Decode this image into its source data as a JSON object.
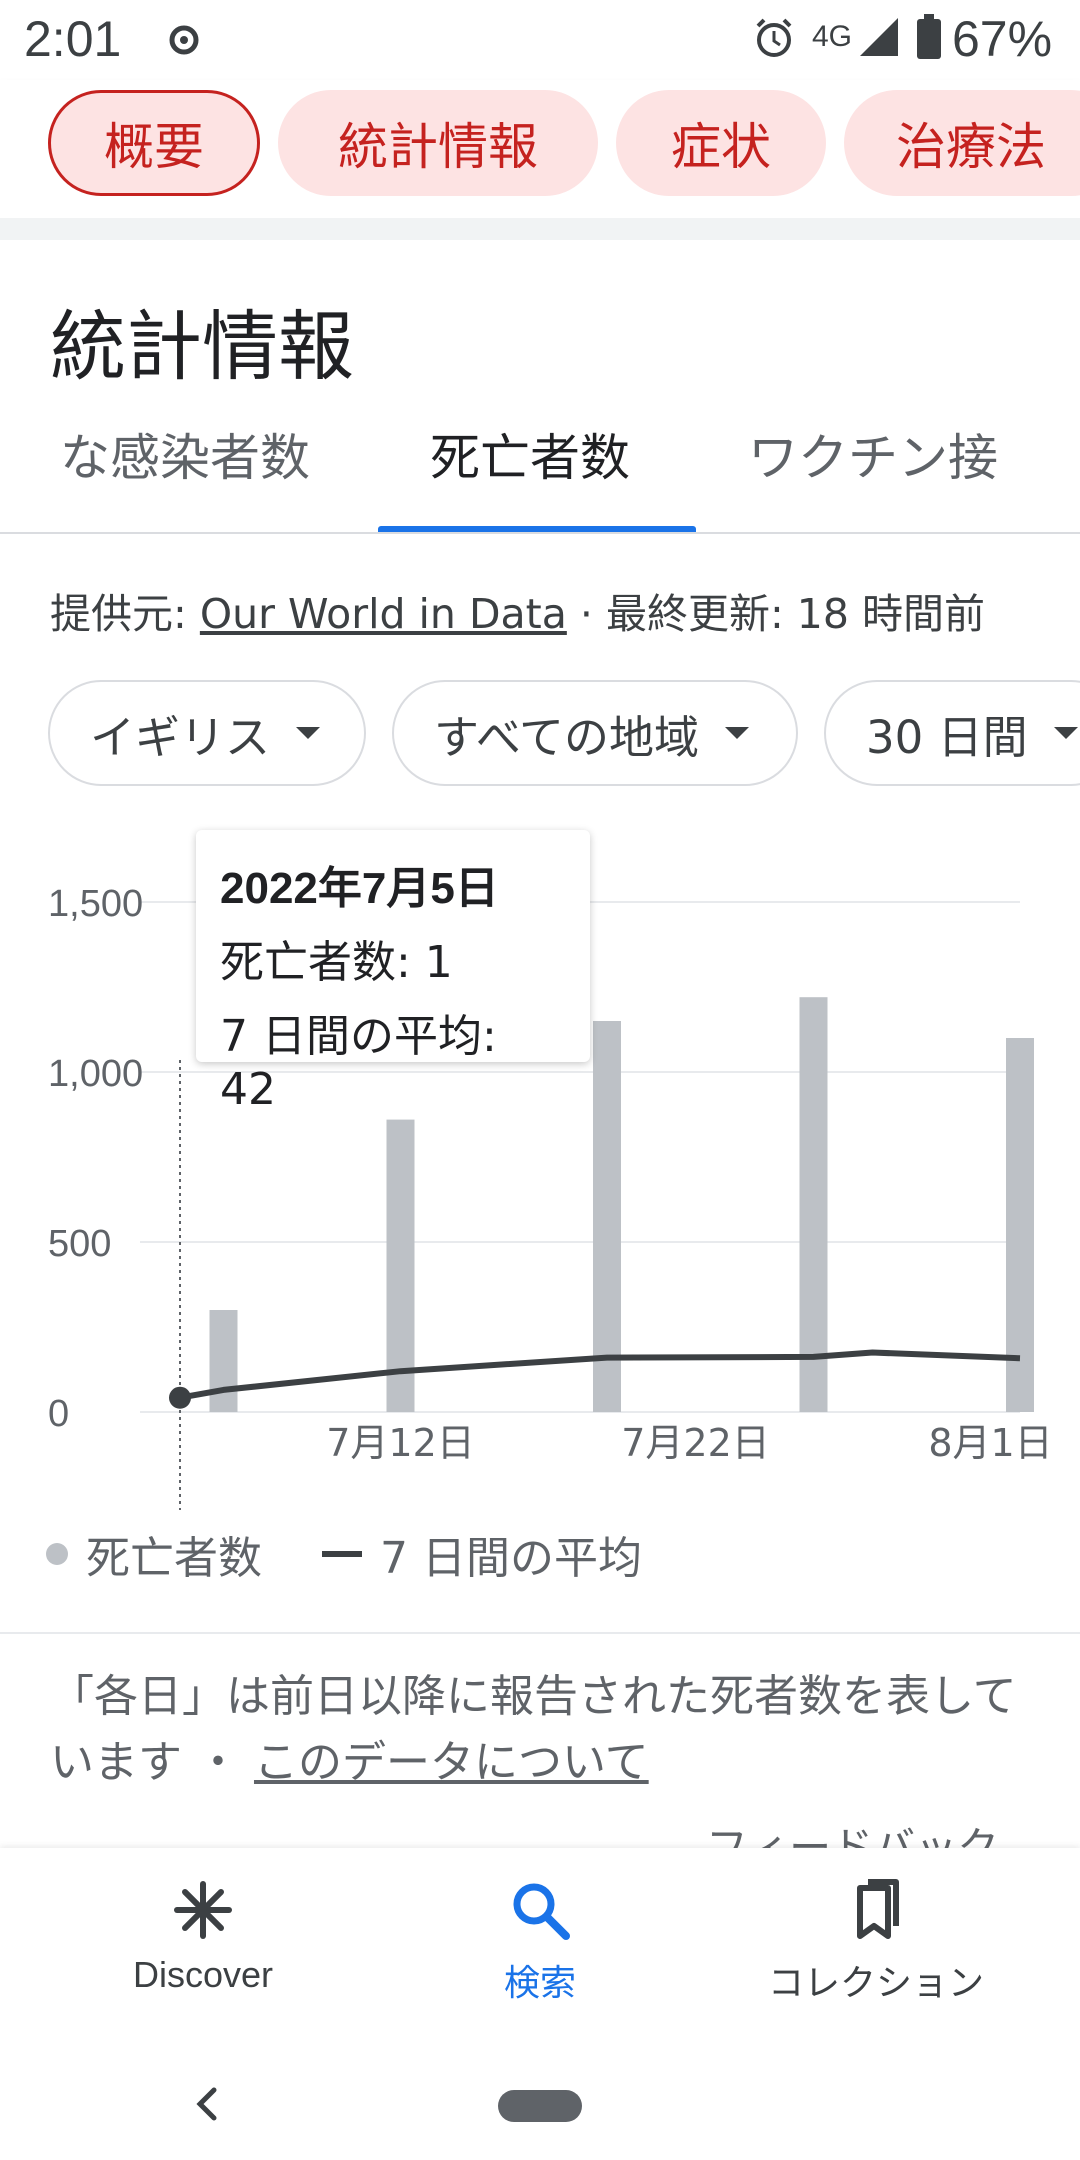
{
  "status_bar": {
    "time": "2:01",
    "network": "4G",
    "battery": "67%"
  },
  "chips": [
    "概要",
    "統計情報",
    "症状",
    "治療法"
  ],
  "section_title": "統計情報",
  "tabs": [
    "な感染者数",
    "死亡者数",
    "ワクチン接"
  ],
  "source": {
    "prefix": "提供元: ",
    "link": "Our World in Data",
    "suffix": " · 最終更新: 18 時間前"
  },
  "filters": [
    "イギリス",
    "すべての地域",
    "30 日間"
  ],
  "tooltip": {
    "date": "2022年7月5日",
    "deaths": "死亡者数: 1",
    "average": "7 日間の平均: 42"
  },
  "legend": {
    "deaths": "死亡者数",
    "average": "7 日間の平均"
  },
  "note": {
    "text": "「各日」は前日以降に報告された死者数を表しています ・ ",
    "link": "このデータについて"
  },
  "feedback": "フィードバック",
  "bottom_nav": {
    "discover": "Discover",
    "search": "検索",
    "collections": "コレクション"
  },
  "colors": {
    "accent_blue": "#1a73e8",
    "chip_red": "#c5221f",
    "chip_bg": "#fde3e3",
    "bar": "#bdc1c6",
    "line": "#3c4043"
  },
  "chart_data": {
    "type": "bar",
    "x_dates": [
      "2022-07-06",
      "2022-07-12",
      "2022-07-19",
      "2022-07-26",
      "2022-08-02"
    ],
    "values": [
      300,
      860,
      1150,
      1220,
      1100
    ],
    "average_line": {
      "x_dates": [
        "2022-07-05",
        "2022-07-06",
        "2022-07-12",
        "2022-07-19",
        "2022-07-26",
        "2022-07-28",
        "2022-08-02"
      ],
      "values": [
        42,
        65,
        120,
        160,
        162,
        175,
        158
      ]
    },
    "highlight": {
      "date": "2022-07-05",
      "value": 42
    },
    "x_ticks": [
      "7月12日",
      "7月22日",
      "8月1日"
    ],
    "y_ticks": [
      "1,500",
      "1,000",
      "500",
      "0"
    ],
    "ylim": [
      0,
      1500
    ],
    "xlim": [
      "2022-07-05",
      "2022-08-02"
    ],
    "grid": true
  }
}
